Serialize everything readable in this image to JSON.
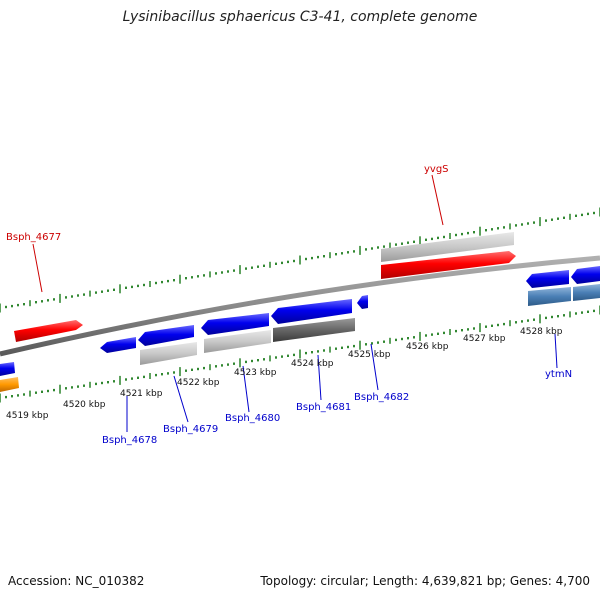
{
  "title": "Lysinibacillus sphaericus C3-41, complete genome",
  "footer": {
    "accession": "Accession: NC_010382",
    "summary": "Topology: circular; Length: 4,639,821 bp; Genes: 4,700"
  },
  "colors": {
    "forward_gene": "#ff0000",
    "reverse_gene": "#0000ee",
    "other_gene": "#ff9900",
    "cds_light": "#c8c8c8",
    "cds_dark": "#666666",
    "cds_steel": "#4a7fb5",
    "backbone": "#8a8a8a",
    "tick": "#1a7a1a",
    "forward_label": "#cc0000",
    "reverse_label": "#0000cc"
  },
  "kbp_labels": [
    "4519 kbp",
    "4520 kbp",
    "4521 kbp",
    "4522 kbp",
    "4523 kbp",
    "4524 kbp",
    "4525 kbp",
    "4526 kbp",
    "4527 kbp",
    "4528 kbp"
  ],
  "gene_labels": [
    {
      "text": "Bsph_4677",
      "strand": "forward"
    },
    {
      "text": "yvgS",
      "strand": "forward"
    },
    {
      "text": "Bsph_4678",
      "strand": "reverse"
    },
    {
      "text": "Bsph_4679",
      "strand": "reverse"
    },
    {
      "text": "Bsph_4680",
      "strand": "reverse"
    },
    {
      "text": "Bsph_4681",
      "strand": "reverse"
    },
    {
      "text": "Bsph_4682",
      "strand": "reverse"
    },
    {
      "text": "ytmN",
      "strand": "reverse"
    }
  ]
}
